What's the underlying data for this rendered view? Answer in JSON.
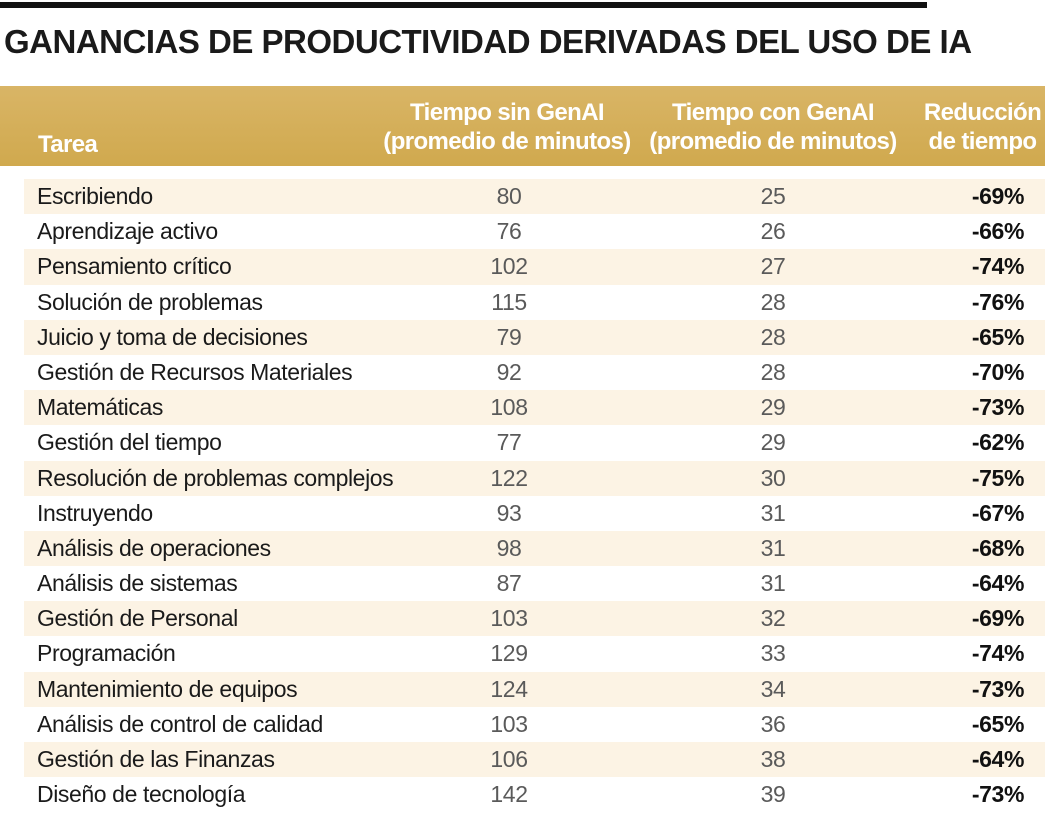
{
  "title": "GANANCIAS DE PRODUCTIVIDAD DERIVADAS DEL USO DE IA",
  "colors": {
    "header_bg": "#d4ae58",
    "row_shade": "#fcf3e4",
    "header_text": "#ffffff"
  },
  "chart_data": {
    "type": "table",
    "title": "GANANCIAS DE PRODUCTIVIDAD DERIVADAS DEL USO DE IA",
    "columns": [
      "Tarea",
      "Tiempo sin GenAI\n(promedio de minutos)",
      "Tiempo con GenAI\n(promedio de minutos)",
      "Reducción\nde tiempo"
    ],
    "rows": [
      {
        "task": "Escribiendo",
        "without": "80",
        "with": "25",
        "reduction": "-69%"
      },
      {
        "task": "Aprendizaje activo",
        "without": "76",
        "with": "26",
        "reduction": "-66%"
      },
      {
        "task": "Pensamiento crítico",
        "without": "102",
        "with": "27",
        "reduction": "-74%"
      },
      {
        "task": "Solución de problemas",
        "without": "115",
        "with": "28",
        "reduction": "-76%"
      },
      {
        "task": "Juicio y toma de decisiones",
        "without": "79",
        "with": "28",
        "reduction": "-65%"
      },
      {
        "task": "Gestión de Recursos Materiales",
        "without": "92",
        "with": "28",
        "reduction": "-70%"
      },
      {
        "task": "Matemáticas",
        "without": "108",
        "with": "29",
        "reduction": "-73%"
      },
      {
        "task": "Gestión del tiempo",
        "without": "77",
        "with": "29",
        "reduction": "-62%"
      },
      {
        "task": "Resolución de problemas complejos",
        "without": "122",
        "with": "30",
        "reduction": "-75%"
      },
      {
        "task": "Instruyendo",
        "without": "93",
        "with": "31",
        "reduction": "-67%"
      },
      {
        "task": "Análisis de operaciones",
        "without": "98",
        "with": "31",
        "reduction": "-68%"
      },
      {
        "task": "Análisis de sistemas",
        "without": "87",
        "with": "31",
        "reduction": "-64%"
      },
      {
        "task": "Gestión de Personal",
        "without": "103",
        "with": "32",
        "reduction": "-69%"
      },
      {
        "task": "Programación",
        "without": "129",
        "with": "33",
        "reduction": "-74%"
      },
      {
        "task": "Mantenimiento de equipos",
        "without": "124",
        "with": "34",
        "reduction": "-73%"
      },
      {
        "task": "Análisis de control de calidad",
        "without": "103",
        "with": "36",
        "reduction": "-65%"
      },
      {
        "task": "Gestión de las Finanzas",
        "without": "106",
        "with": "38",
        "reduction": "-64%"
      },
      {
        "task": "Diseño de tecnología",
        "without": "142",
        "with": "39",
        "reduction": "-73%"
      }
    ]
  }
}
